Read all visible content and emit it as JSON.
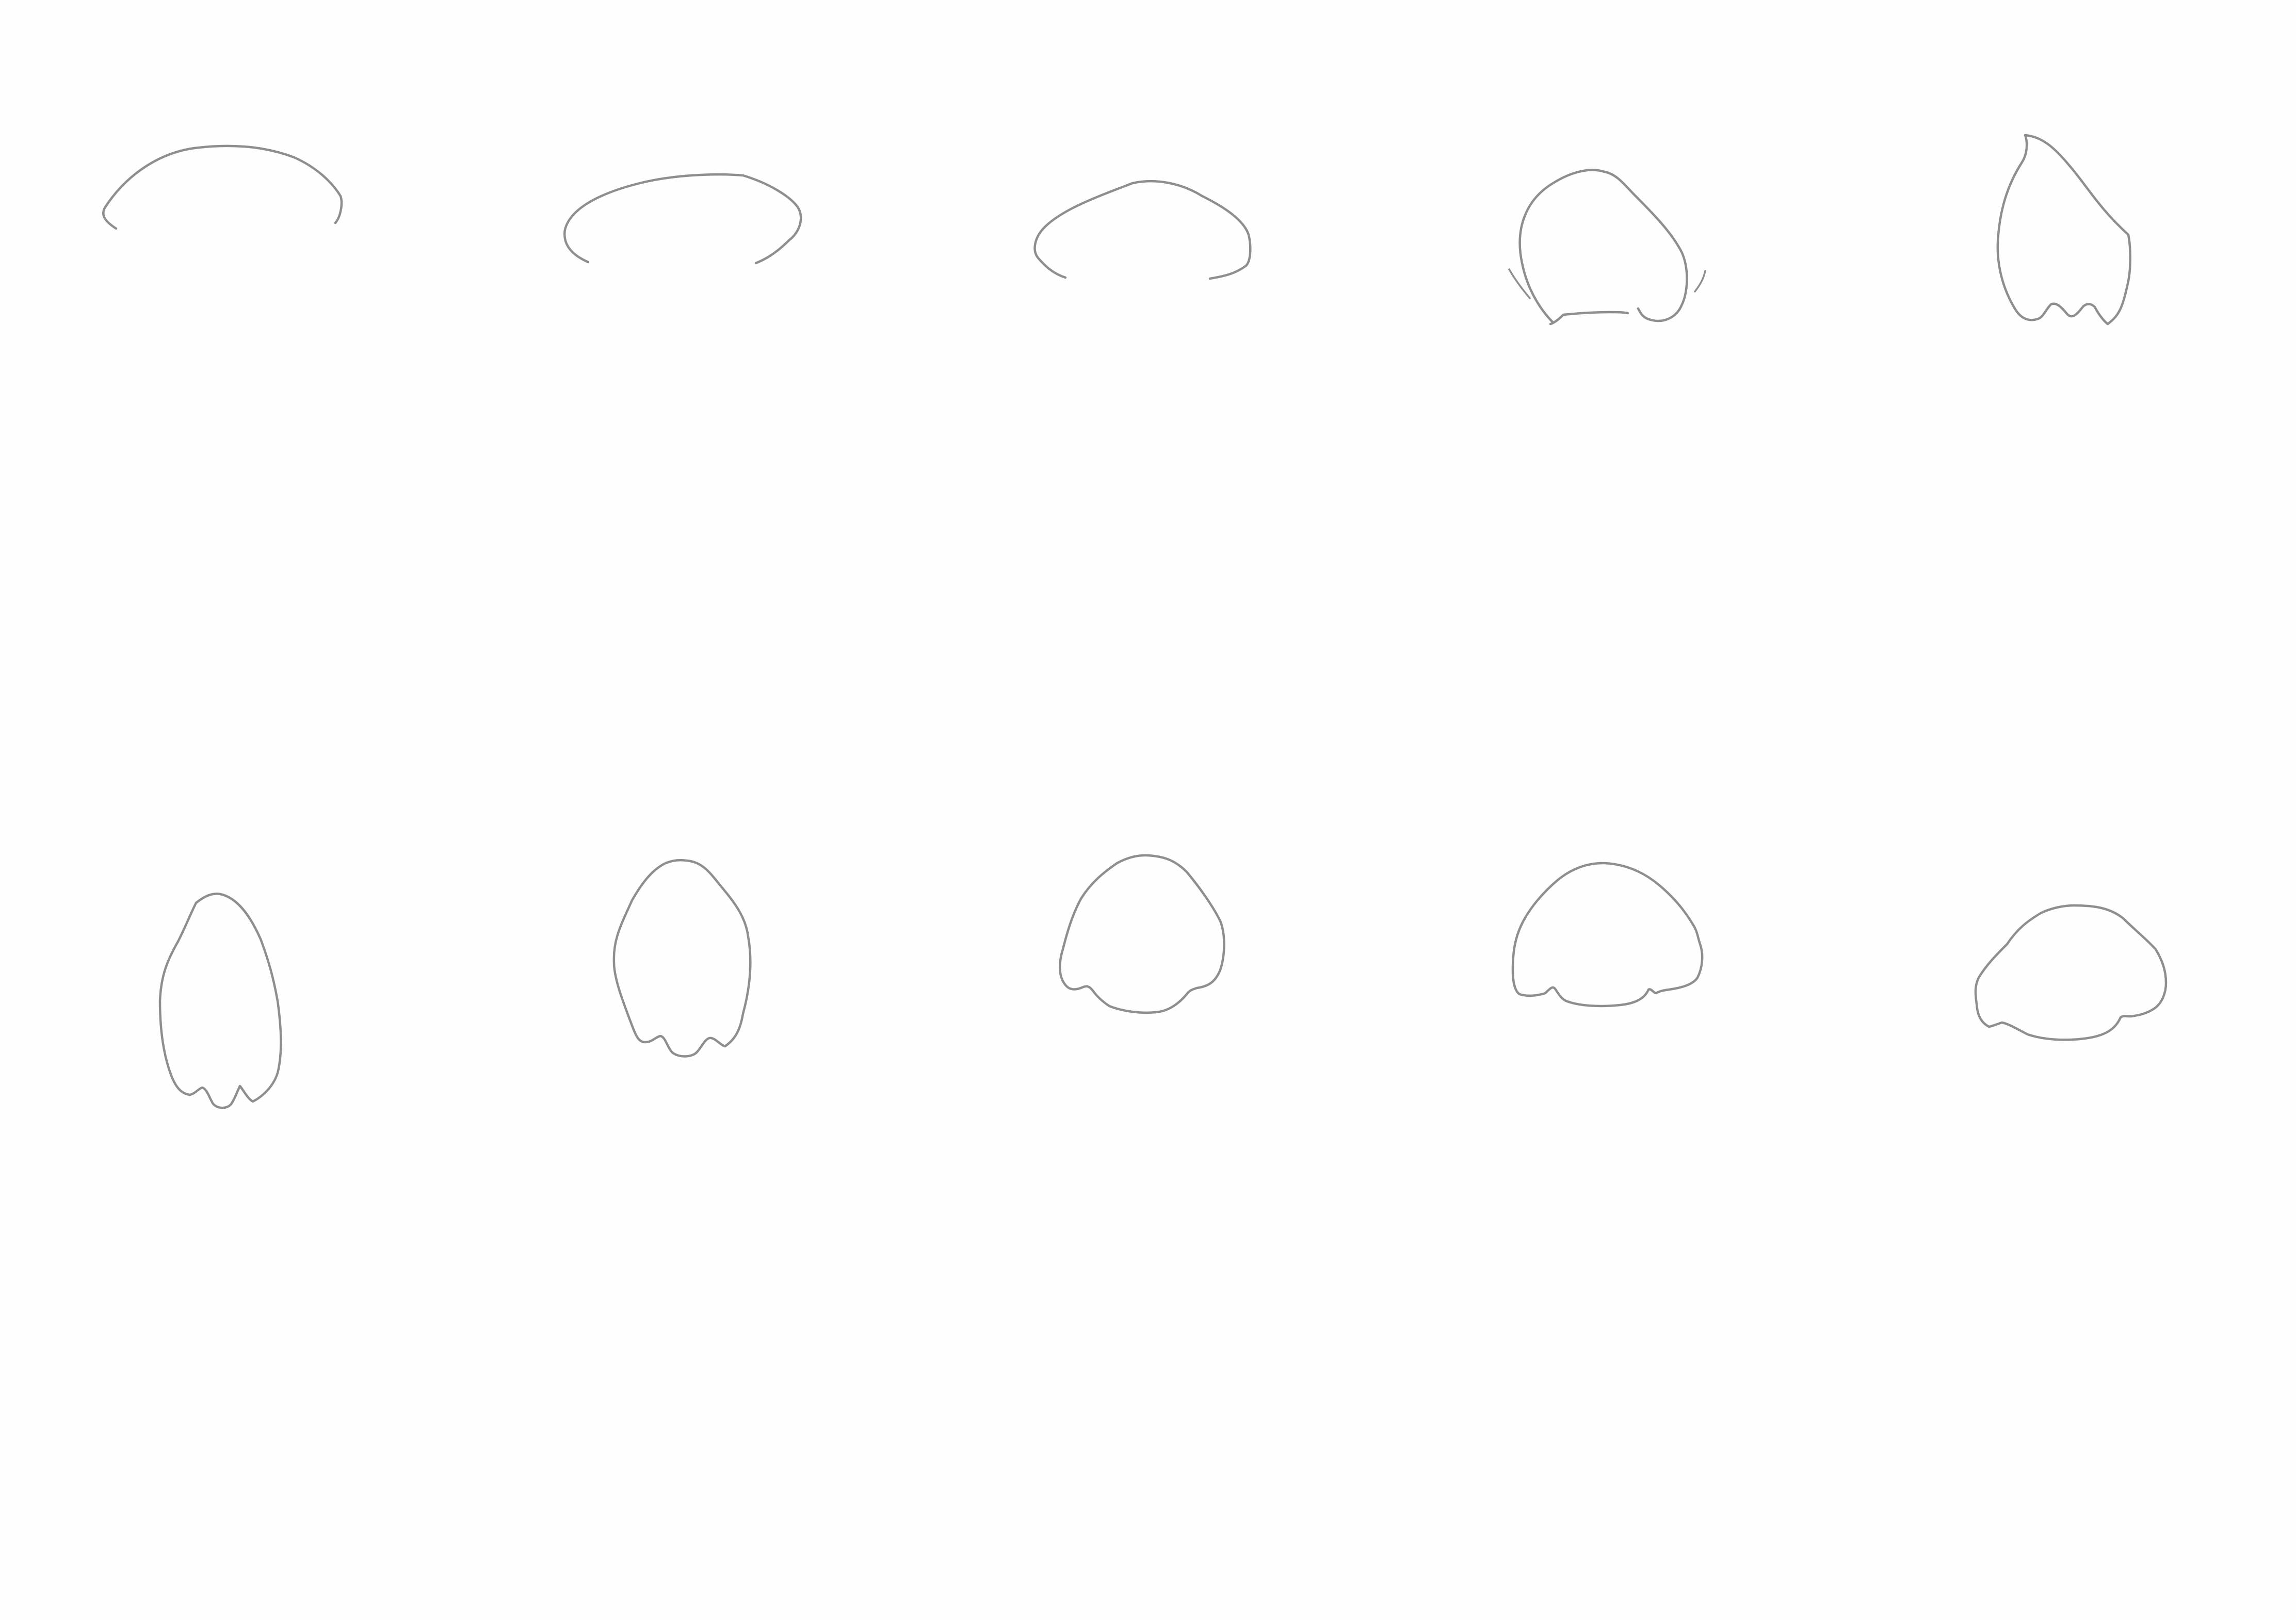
{
  "sheet": {
    "background": "#fefefe",
    "stroke_color": "#8e8e8e",
    "sketches": [
      {
        "name": "sketch-open-arc-1"
      },
      {
        "name": "sketch-open-arc-2"
      },
      {
        "name": "sketch-open-arc-3"
      },
      {
        "name": "sketch-dome-notched"
      },
      {
        "name": "sketch-tall-oval-lobed"
      },
      {
        "name": "sketch-tall-oval-lobed-2"
      },
      {
        "name": "sketch-oval-lobed"
      },
      {
        "name": "sketch-round-lobed"
      },
      {
        "name": "sketch-dome-lobed"
      },
      {
        "name": "sketch-wide-dome-lobed"
      }
    ]
  }
}
